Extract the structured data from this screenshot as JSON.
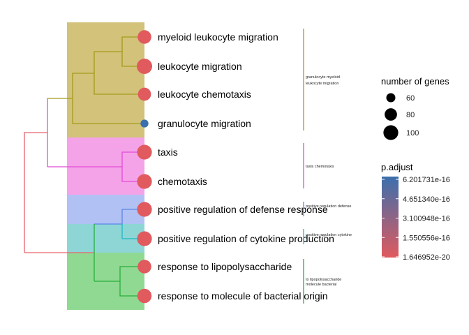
{
  "chart_data": {
    "type": "scatter",
    "title": "",
    "xlabel": "",
    "ylabel": "",
    "terms": [
      {
        "name": "myeloid leukocyte migration",
        "count": 90,
        "p_adjust": 1.6e-19,
        "cluster": 0
      },
      {
        "name": "leukocyte migration",
        "count": 105,
        "p_adjust": 1e-19,
        "cluster": 0
      },
      {
        "name": "leukocyte chemotaxis",
        "count": 85,
        "p_adjust": 2e-19,
        "cluster": 0
      },
      {
        "name": "granulocyte migration",
        "count": 55,
        "p_adjust": 6.2e-16,
        "cluster": 0
      },
      {
        "name": "taxis",
        "count": 100,
        "p_adjust": 1e-19,
        "cluster": 1
      },
      {
        "name": "chemotaxis",
        "count": 100,
        "p_adjust": 1e-19,
        "cluster": 1
      },
      {
        "name": "positive regulation of defense response",
        "count": 100,
        "p_adjust": 1e-19,
        "cluster": 2
      },
      {
        "name": "positive regulation of cytokine production",
        "count": 100,
        "p_adjust": 1e-19,
        "cluster": 3
      },
      {
        "name": "response to lipopolysaccharide",
        "count": 90,
        "p_adjust": 1.6e-19,
        "cluster": 4
      },
      {
        "name": "response to molecule of bacterial origin",
        "count": 95,
        "p_adjust": 1.6e-19,
        "cluster": 4
      }
    ],
    "clusters": [
      {
        "label_lines": [
          "granulocyte myeloid",
          "leukocyte migration"
        ],
        "fill": "#d2c27a",
        "line_color": "#a59b1c"
      },
      {
        "label_lines": [
          "taxis chemotaxis"
        ],
        "fill": "#f4a3e8",
        "line_color": "#e44bd8"
      },
      {
        "label_lines": [
          "positive regulation defense"
        ],
        "fill": "#b1c1f4",
        "line_color": "#5c86e8"
      },
      {
        "label_lines": [
          "positive regulation cytokine"
        ],
        "fill": "#8ed6d6",
        "line_color": "#1fb7c1"
      },
      {
        "label_lines": [
          "to lipopolysaccharide",
          "molecule bacterial"
        ],
        "fill": "#90d992",
        "line_color": "#27ae3b"
      }
    ],
    "root_color": "#e8646c",
    "legend_size": {
      "title": "number of genes",
      "entries": [
        {
          "label": "60",
          "value": 60
        },
        {
          "label": "80",
          "value": 80
        },
        {
          "label": "100",
          "value": 100
        }
      ]
    },
    "legend_color": {
      "title": "p.adjust",
      "labels": [
        "6.201731e-16",
        "4.651340e-16",
        "3.100948e-16",
        "1.550556e-16",
        "1.646952e-20"
      ],
      "high_color": "#3b6fad",
      "low_color": "#e05a5e"
    }
  }
}
